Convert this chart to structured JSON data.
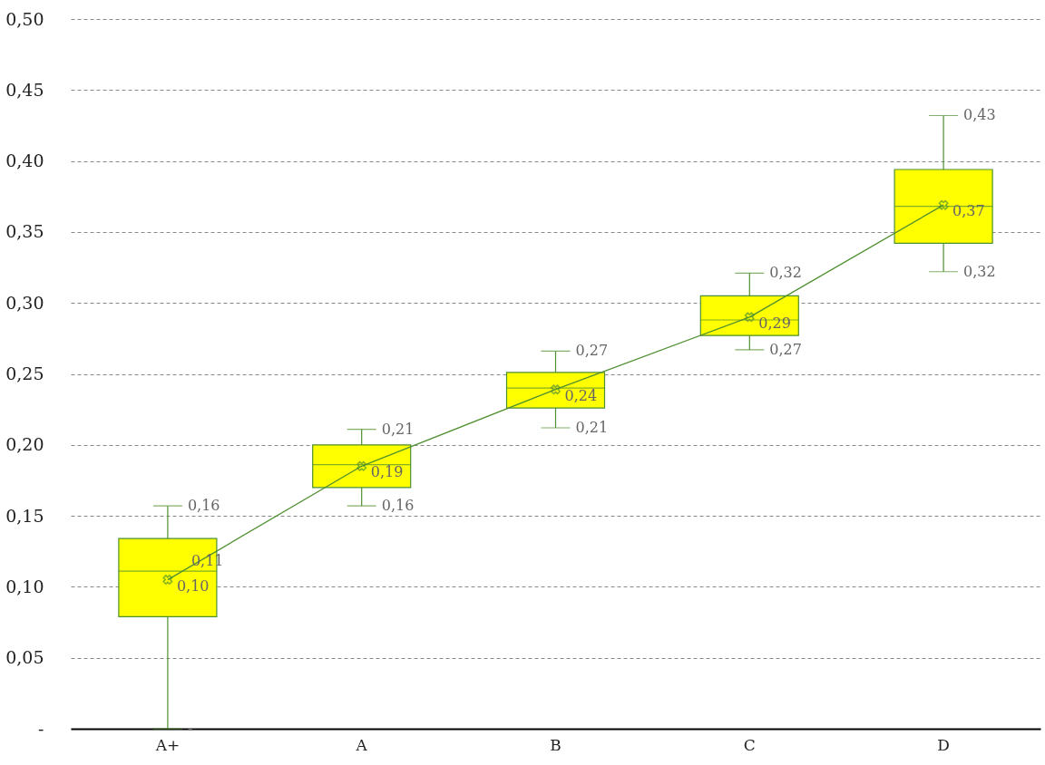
{
  "chart_data": {
    "type": "box",
    "categories": [
      "A+",
      "A",
      "B",
      "C",
      "D"
    ],
    "series": [
      {
        "type": "box",
        "color": "#ffff00",
        "boxes": [
          {
            "low": 0,
            "q1": 0.079,
            "median": 0.111,
            "q3": 0.134,
            "high": 0.157
          },
          {
            "low": 0.157,
            "q1": 0.17,
            "median": 0.186,
            "q3": 0.2,
            "high": 0.211
          },
          {
            "low": 0.212,
            "q1": 0.226,
            "median": 0.24,
            "q3": 0.251,
            "high": 0.266
          },
          {
            "low": 0.267,
            "q1": 0.277,
            "median": 0.288,
            "q3": 0.305,
            "high": 0.321
          },
          {
            "low": 0.322,
            "q1": 0.342,
            "median": 0.368,
            "q3": 0.394,
            "high": 0.432
          }
        ]
      },
      {
        "type": "line",
        "color": "#4e8f2f",
        "marker": "cross",
        "values": [
          0.105,
          0.185,
          0.239,
          0.29,
          0.369
        ]
      }
    ],
    "ylim": [
      0,
      0.5
    ],
    "yticks": [
      {
        "value": 0,
        "label": "-"
      },
      {
        "value": 0.05,
        "label": "0,05"
      },
      {
        "value": 0.1,
        "label": "0,10"
      },
      {
        "value": 0.15,
        "label": "0,15"
      },
      {
        "value": 0.2,
        "label": "0,20"
      },
      {
        "value": 0.25,
        "label": "0,25"
      },
      {
        "value": 0.3,
        "label": "0,30"
      },
      {
        "value": 0.35,
        "label": "0,35"
      },
      {
        "value": 0.4,
        "label": "0,40"
      },
      {
        "value": 0.45,
        "label": "0,45"
      },
      {
        "value": 0.5,
        "label": "0,50"
      }
    ],
    "grid": "y",
    "annotations": [
      {
        "text": "0,16",
        "x": "A+",
        "y": 0.157
      },
      {
        "text": "0,11",
        "x": "A+",
        "y": 0.111
      },
      {
        "text": "0,10",
        "x": "A+",
        "y": 0.105
      },
      {
        "text": "-",
        "x": "A+",
        "y": 0
      },
      {
        "text": "0,21",
        "x": "A",
        "y": 0.211
      },
      {
        "text": "0,19",
        "x": "A",
        "y": 0.185
      },
      {
        "text": "0,16",
        "x": "A",
        "y": 0.157
      },
      {
        "text": "0,27",
        "x": "B",
        "y": 0.266
      },
      {
        "text": "0,24",
        "x": "B",
        "y": 0.239
      },
      {
        "text": "0,21",
        "x": "B",
        "y": 0.212
      },
      {
        "text": "0,32",
        "x": "C",
        "y": 0.321
      },
      {
        "text": "0,29",
        "x": "C",
        "y": 0.29
      },
      {
        "text": "0,27",
        "x": "C",
        "y": 0.267
      },
      {
        "text": "0,43",
        "x": "D",
        "y": 0.432
      },
      {
        "text": "0,37",
        "x": "D",
        "y": 0.369
      },
      {
        "text": "0,32",
        "x": "D",
        "y": 0.322
      }
    ]
  }
}
